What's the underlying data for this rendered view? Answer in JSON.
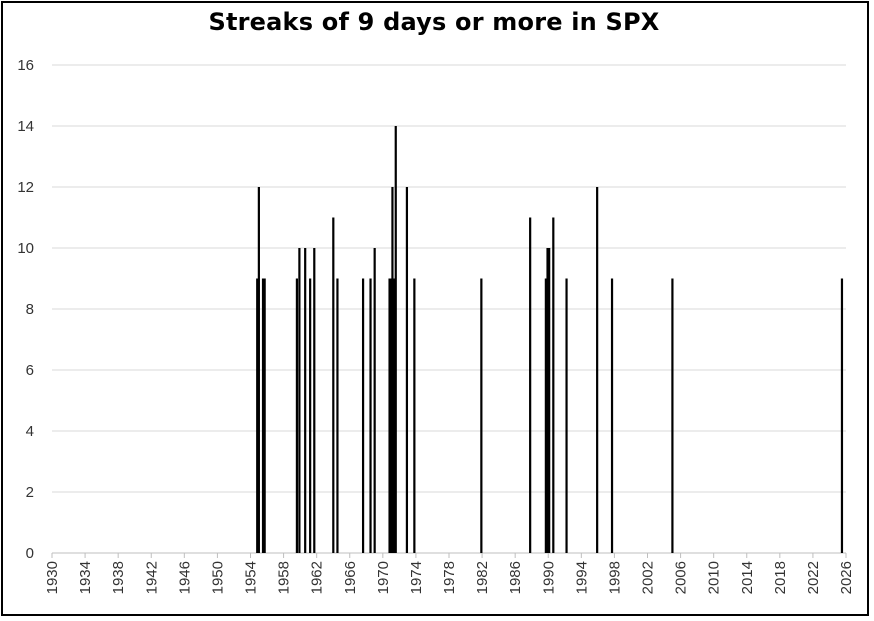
{
  "chart_data": {
    "type": "bar",
    "title": "Streaks of 9 days or more in SPX",
    "xlabel": "",
    "ylabel": "",
    "xlim": [
      1930,
      2026
    ],
    "ylim": [
      0,
      16
    ],
    "y_ticks": [
      0,
      2,
      4,
      6,
      8,
      10,
      12,
      14,
      16
    ],
    "x_ticks": [
      1930,
      1934,
      1938,
      1942,
      1946,
      1950,
      1954,
      1958,
      1962,
      1966,
      1970,
      1974,
      1978,
      1982,
      1986,
      1990,
      1994,
      1998,
      2002,
      2006,
      2010,
      2014,
      2018,
      2022,
      2026
    ],
    "grid": "horizontal",
    "legend": "none",
    "bar_color": "#000000",
    "grid_color": "#d9d9d9",
    "points": [
      {
        "x": 1954.8,
        "y": 9
      },
      {
        "x": 1955.0,
        "y": 12
      },
      {
        "x": 1955.5,
        "y": 9
      },
      {
        "x": 1955.7,
        "y": 9
      },
      {
        "x": 1959.6,
        "y": 9
      },
      {
        "x": 1959.9,
        "y": 10
      },
      {
        "x": 1960.6,
        "y": 10
      },
      {
        "x": 1961.2,
        "y": 9
      },
      {
        "x": 1961.7,
        "y": 10
      },
      {
        "x": 1964.0,
        "y": 11
      },
      {
        "x": 1964.5,
        "y": 9
      },
      {
        "x": 1967.6,
        "y": 9
      },
      {
        "x": 1968.5,
        "y": 9
      },
      {
        "x": 1969.0,
        "y": 10
      },
      {
        "x": 1970.8,
        "y": 9
      },
      {
        "x": 1971.0,
        "y": 9
      },
      {
        "x": 1971.15,
        "y": 12
      },
      {
        "x": 1971.35,
        "y": 9
      },
      {
        "x": 1971.55,
        "y": 14
      },
      {
        "x": 1972.9,
        "y": 12
      },
      {
        "x": 1973.8,
        "y": 9
      },
      {
        "x": 1981.9,
        "y": 9
      },
      {
        "x": 1987.8,
        "y": 11
      },
      {
        "x": 1989.7,
        "y": 9
      },
      {
        "x": 1989.9,
        "y": 10
      },
      {
        "x": 1990.1,
        "y": 10
      },
      {
        "x": 1990.6,
        "y": 11
      },
      {
        "x": 1992.2,
        "y": 9
      },
      {
        "x": 1995.9,
        "y": 12
      },
      {
        "x": 1997.7,
        "y": 9
      },
      {
        "x": 2005.0,
        "y": 9
      },
      {
        "x": 2025.5,
        "y": 9
      }
    ]
  }
}
